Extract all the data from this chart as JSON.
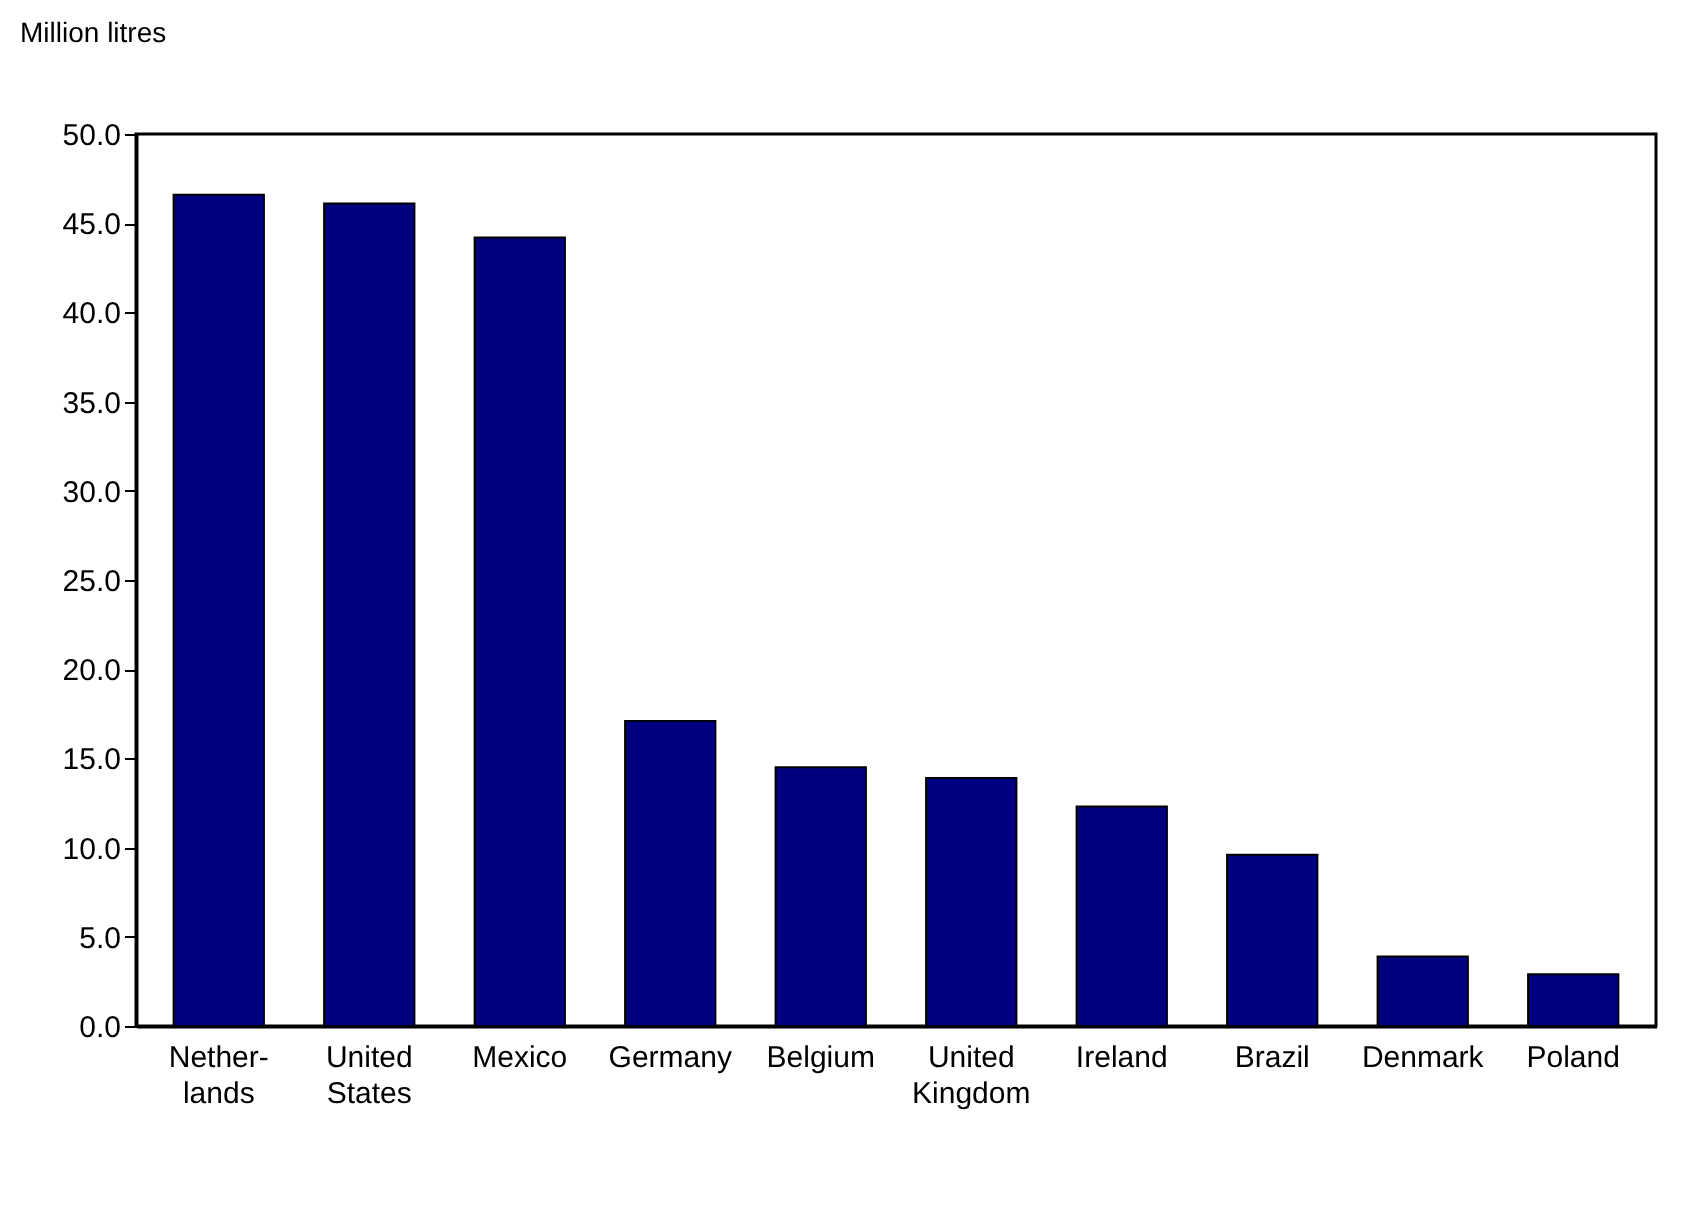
{
  "chart_data": {
    "type": "bar",
    "ylabel": "Million litres",
    "categories": [
      "Nether-\nlands",
      "United\nStates",
      "Mexico",
      "Germany",
      "Belgium",
      "United\nKingdom",
      "Ireland",
      "Brazil",
      "Denmark",
      "Poland"
    ],
    "values": [
      46.6,
      46.1,
      44.2,
      17.1,
      14.5,
      13.9,
      12.3,
      9.6,
      3.9,
      2.9
    ],
    "color": "#000080",
    "ylim": [
      0,
      50
    ],
    "yticks": [
      {
        "value": 0,
        "label": "0.0"
      },
      {
        "value": 5,
        "label": "5.0"
      },
      {
        "value": 10,
        "label": "10.0"
      },
      {
        "value": 15,
        "label": "15.0"
      },
      {
        "value": 20,
        "label": "20.0"
      },
      {
        "value": 25,
        "label": "25.0"
      },
      {
        "value": 30,
        "label": "30.0"
      },
      {
        "value": 35,
        "label": "35.0"
      },
      {
        "value": 40,
        "label": "40.0"
      },
      {
        "value": 45,
        "label": "45.0"
      },
      {
        "value": 50,
        "label": "50.0"
      }
    ],
    "grid": false
  }
}
